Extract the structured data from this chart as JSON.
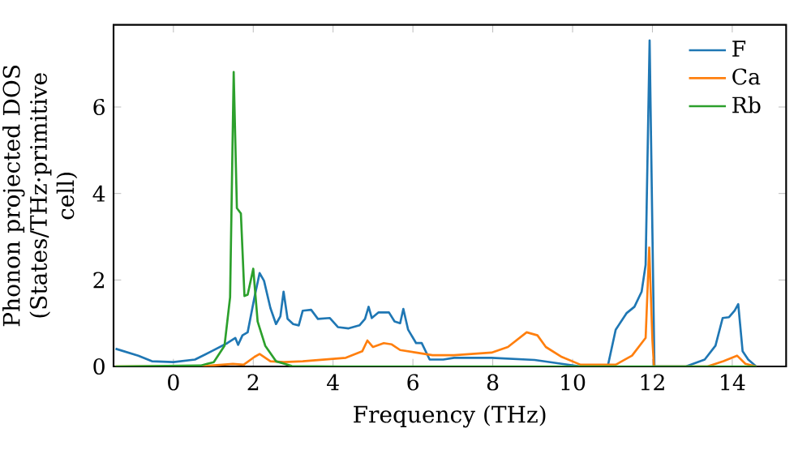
{
  "chart_data": {
    "type": "line",
    "xlabel": "Frequency (THz)",
    "ylabel": "Phonon projected DOS (States/THz·primitive cell)",
    "xlim": [
      -1.5,
      15.35
    ],
    "ylim": [
      0,
      7.9
    ],
    "xticks": [
      0,
      2,
      4,
      6,
      8,
      10,
      12,
      14
    ],
    "yticks": [
      0,
      2,
      4,
      6
    ],
    "legend": "top right",
    "line_style": "solid",
    "series": [
      {
        "name": "F",
        "color": "#1f77b4",
        "x": [
          -1.45,
          -0.88,
          -0.54,
          0,
          0.54,
          0.95,
          1.35,
          1.55,
          1.62,
          1.73,
          1.86,
          2.03,
          2.16,
          2.27,
          2.43,
          2.57,
          2.68,
          2.76,
          2.86,
          3.0,
          3.14,
          3.24,
          3.45,
          3.62,
          3.92,
          4.12,
          4.39,
          4.66,
          4.8,
          4.89,
          4.97,
          5.14,
          5.4,
          5.54,
          5.68,
          5.76,
          5.88,
          6.08,
          6.22,
          6.42,
          6.76,
          7.03,
          7.97,
          9.05,
          9.73,
          10.2,
          10.88,
          11.08,
          11.35,
          11.55,
          11.73,
          11.83,
          11.93,
          12.0,
          12.05,
          12.84,
          13.31,
          13.58,
          13.76,
          13.92,
          14.06,
          14.15,
          14.26,
          14.4,
          14.6
        ],
        "values": [
          0.41,
          0.25,
          0.12,
          0.1,
          0.16,
          0.35,
          0.54,
          0.66,
          0.5,
          0.72,
          0.79,
          1.6,
          2.16,
          1.98,
          1.35,
          0.98,
          1.16,
          1.73,
          1.1,
          0.98,
          0.95,
          1.29,
          1.31,
          1.1,
          1.12,
          0.91,
          0.88,
          0.95,
          1.1,
          1.38,
          1.12,
          1.25,
          1.25,
          1.04,
          1.0,
          1.33,
          0.85,
          0.54,
          0.54,
          0.16,
          0.16,
          0.2,
          0.2,
          0.15,
          0.06,
          0,
          0,
          0.85,
          1.23,
          1.38,
          1.73,
          2.35,
          7.54,
          3.1,
          0,
          0,
          0.16,
          0.48,
          1.12,
          1.14,
          1.29,
          1.44,
          0.35,
          0.16,
          0
        ]
      },
      {
        "name": "Ca",
        "color": "#ff7f0e",
        "x": [
          -1.45,
          0.81,
          1.49,
          1.76,
          2.03,
          2.16,
          2.43,
          2.77,
          3.24,
          3.78,
          4.32,
          4.73,
          4.86,
          5.0,
          5.27,
          5.47,
          5.68,
          6.08,
          6.49,
          7.03,
          7.97,
          8.38,
          8.85,
          9.12,
          9.33,
          9.73,
          10.2,
          11.08,
          11.49,
          11.83,
          11.92,
          12.0,
          12.04,
          13.38,
          13.78,
          14.12,
          14.33,
          14.6
        ],
        "values": [
          0,
          0.01,
          0.06,
          0.04,
          0.22,
          0.29,
          0.12,
          0.1,
          0.12,
          0.16,
          0.2,
          0.35,
          0.6,
          0.45,
          0.54,
          0.51,
          0.38,
          0.32,
          0.26,
          0.26,
          0.32,
          0.45,
          0.79,
          0.72,
          0.45,
          0.22,
          0.04,
          0.04,
          0.25,
          0.66,
          2.75,
          0.6,
          0,
          0,
          0.12,
          0.25,
          0.06,
          0
        ]
      },
      {
        "name": "Rb",
        "color": "#2ca02c",
        "x": [
          -1.45,
          0.68,
          1.01,
          1.28,
          1.42,
          1.51,
          1.59,
          1.69,
          1.78,
          1.86,
          2.0,
          2.11,
          2.3,
          2.57,
          2.97,
          4.19,
          14.6
        ],
        "values": [
          0,
          0.02,
          0.1,
          0.48,
          1.6,
          6.81,
          3.66,
          3.54,
          1.63,
          1.66,
          2.26,
          1.04,
          0.48,
          0.12,
          0.01,
          0,
          0
        ]
      }
    ]
  }
}
